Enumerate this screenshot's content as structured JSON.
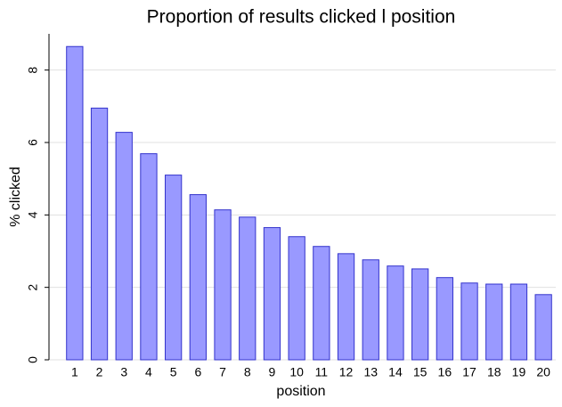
{
  "chart_data": {
    "type": "bar",
    "title": "Proportion of results clicked l position",
    "x_label": "position",
    "y_label": "% clicked",
    "categories": [
      "1",
      "2",
      "3",
      "4",
      "5",
      "6",
      "7",
      "8",
      "9",
      "10",
      "11",
      "12",
      "13",
      "14",
      "15",
      "16",
      "17",
      "18",
      "19",
      "20"
    ],
    "values": [
      8.65,
      6.95,
      6.28,
      5.69,
      5.1,
      4.56,
      4.14,
      3.94,
      3.65,
      3.4,
      3.13,
      2.93,
      2.76,
      2.59,
      2.51,
      2.27,
      2.12,
      2.09,
      2.09,
      1.8
    ],
    "color": "#9999ff",
    "edge_color": "#3333cc",
    "ylim": [
      0,
      9
    ],
    "yticks": [
      0,
      2,
      4,
      6,
      8
    ],
    "grid": true
  }
}
